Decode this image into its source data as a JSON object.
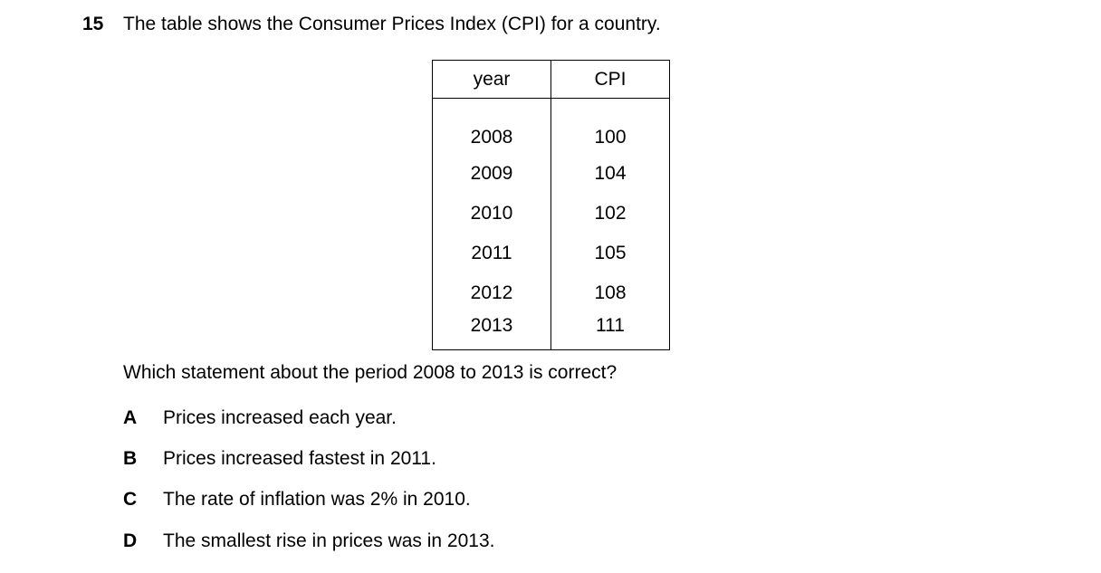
{
  "question": {
    "number": "15",
    "stem": "The table shows the Consumer Prices Index (CPI) for a country.",
    "prompt": "Which statement about the period 2008 to 2013 is correct?"
  },
  "table": {
    "headers": [
      "year",
      "CPI"
    ],
    "rows": [
      [
        "2008",
        "100"
      ],
      [
        "2009",
        "104"
      ],
      [
        "2010",
        "102"
      ],
      [
        "2011",
        "105"
      ],
      [
        "2012",
        "108"
      ],
      [
        "2013",
        "111"
      ]
    ]
  },
  "options": [
    {
      "letter": "A",
      "text": "Prices increased each year."
    },
    {
      "letter": "B",
      "text": "Prices increased fastest in 2011."
    },
    {
      "letter": "C",
      "text": "The rate of inflation was 2% in 2010."
    },
    {
      "letter": "D",
      "text": "The smallest rise in prices was in 2013."
    }
  ]
}
